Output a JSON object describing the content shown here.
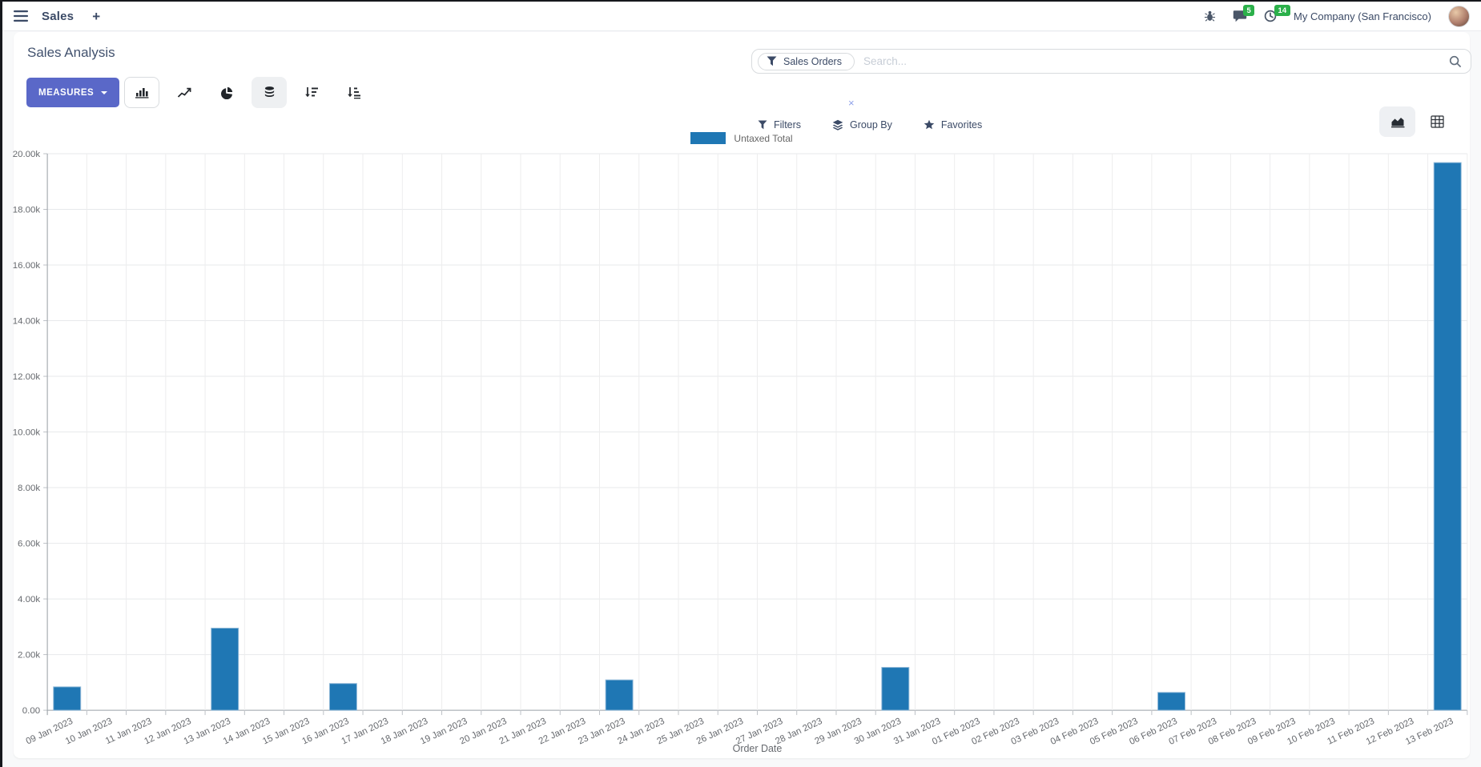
{
  "topbar": {
    "menu_label": "Sales",
    "plus_label": "+",
    "messages_count": "5",
    "activities_count": "14",
    "company": "My Company (San Francisco)",
    "badge_color": "#2bb04a",
    "icons": [
      "menu-icon",
      "plus-icon",
      "bug-icon",
      "messages-icon",
      "activities-clock-icon",
      "avatar"
    ]
  },
  "control_panel": {
    "title": "Sales Analysis",
    "measures_label": "MEASURES",
    "chart_buttons": {
      "bar": {
        "icon": "bar-chart-icon",
        "active": true
      },
      "line": {
        "icon": "line-chart-icon",
        "active": false
      },
      "pie": {
        "icon": "pie-chart-icon",
        "active": false
      },
      "stacked": {
        "icon": "stacked-database-icon",
        "active": true
      },
      "sort_desc": {
        "icon": "sort-descending-icon",
        "active": false
      },
      "sort_asc": {
        "icon": "sort-ascending-icon",
        "active": false
      }
    },
    "search": {
      "facet": "Sales Orders",
      "facet_icon": "filter-funnel-icon",
      "remove_facet": "×",
      "placeholder": "Search...",
      "search_icon": "magnifier-icon"
    },
    "filters_label": "Filters",
    "group_by_label": "Group By",
    "favorites_label": "Favorites",
    "view_switcher": {
      "graph": {
        "icon": "area-graph-icon",
        "active": true
      },
      "pivot": {
        "icon": "pivot-table-icon",
        "active": false
      }
    }
  },
  "chart_data": {
    "type": "bar",
    "title": "",
    "xlabel": "Order Date",
    "ylabel": "",
    "legend_label": "Untaxed Total",
    "legend_position": "top",
    "grid": true,
    "ylim": [
      0,
      20000
    ],
    "ytick_step": 2000,
    "ytick_labels": [
      "0.00",
      "2.00k",
      "4.00k",
      "6.00k",
      "8.00k",
      "10.00k",
      "12.00k",
      "14.00k",
      "16.00k",
      "18.00k",
      "20.00k"
    ],
    "bar_color": "#1f77b4",
    "bar_border_color": "#8fb8d8",
    "categories": [
      "09 Jan 2023",
      "10 Jan 2023",
      "11 Jan 2023",
      "12 Jan 2023",
      "13 Jan 2023",
      "14 Jan 2023",
      "15 Jan 2023",
      "16 Jan 2023",
      "17 Jan 2023",
      "18 Jan 2023",
      "19 Jan 2023",
      "20 Jan 2023",
      "21 Jan 2023",
      "22 Jan 2023",
      "23 Jan 2023",
      "24 Jan 2023",
      "25 Jan 2023",
      "26 Jan 2023",
      "27 Jan 2023",
      "28 Jan 2023",
      "29 Jan 2023",
      "30 Jan 2023",
      "31 Jan 2023",
      "01 Feb 2023",
      "02 Feb 2023",
      "03 Feb 2023",
      "04 Feb 2023",
      "05 Feb 2023",
      "06 Feb 2023",
      "07 Feb 2023",
      "08 Feb 2023",
      "09 Feb 2023",
      "10 Feb 2023",
      "11 Feb 2023",
      "12 Feb 2023",
      "13 Feb 2023"
    ],
    "series": [
      {
        "name": "Untaxed Total",
        "values": [
          840,
          0,
          0,
          0,
          2950,
          0,
          0,
          960,
          0,
          0,
          0,
          0,
          0,
          0,
          1090,
          0,
          0,
          0,
          0,
          0,
          0,
          1540,
          0,
          0,
          0,
          0,
          0,
          0,
          640,
          0,
          0,
          0,
          0,
          0,
          0,
          19680
        ]
      }
    ]
  }
}
